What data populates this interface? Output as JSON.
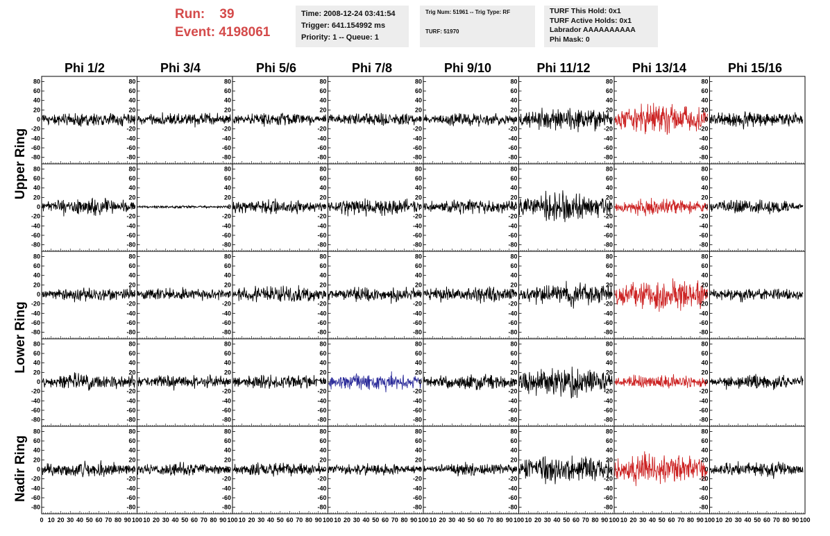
{
  "run": {
    "run_label": "Run:",
    "run_value": "39",
    "event_label": "Event:",
    "event_value": "4198061"
  },
  "time_box": {
    "time": "Time: 2008-12-24 03:41:54",
    "trigger": "Trigger: 641.154992 ms",
    "priority": "Priority: 1 -- Queue: 1"
  },
  "trig_box": {
    "trig": "Trig Num: 51961 -- Trig Type: RF",
    "turf": "TURF: 51970"
  },
  "turf_box": {
    "hold": "TURF This Hold: 0x1",
    "active": "TURF Active Holds: 0x1",
    "labrador": "Labrador AAAAAAAAAA",
    "phimask": "Phi Mask: 0"
  },
  "columns": [
    "Phi 1/2",
    "Phi 3/4",
    "Phi 5/6",
    "Phi 7/8",
    "Phi 9/10",
    "Phi 11/12",
    "Phi 13/14",
    "Phi 15/16"
  ],
  "rings": [
    "Upper Ring",
    "Lower Ring",
    "Nadir Ring"
  ],
  "colors": {
    "normal": "#000000",
    "triggered": "#cc2222",
    "highlight": "#2a2a99",
    "header_text": "#d44a4a"
  },
  "chart_data": {
    "type": "line",
    "panel_rows": 5,
    "panel_cols": 8,
    "ylim": [
      -85,
      85
    ],
    "yticks": [
      -80,
      -60,
      -40,
      -20,
      0,
      20,
      40,
      60,
      80
    ],
    "xlim": [
      0,
      100
    ],
    "xticks": [
      0,
      10,
      20,
      30,
      40,
      50,
      60,
      70,
      80,
      90,
      100
    ],
    "xtick_labels": [
      "0",
      "10",
      "20",
      "30",
      "40",
      "50",
      "60",
      "70",
      "80",
      "90",
      "100"
    ],
    "row_ring_groups": [
      [
        0,
        1
      ],
      [
        2,
        3
      ],
      [
        4,
        4
      ]
    ],
    "waveform_amplitude": [
      [
        18,
        18,
        18,
        18,
        16,
        30,
        40,
        22
      ],
      [
        22,
        4,
        20,
        22,
        20,
        38,
        20,
        18
      ],
      [
        20,
        18,
        22,
        20,
        20,
        32,
        45,
        18
      ],
      [
        22,
        18,
        20,
        24,
        22,
        40,
        18,
        20
      ],
      [
        20,
        18,
        18,
        16,
        16,
        38,
        42,
        20
      ]
    ],
    "waveform_color": [
      [
        "normal",
        "normal",
        "normal",
        "normal",
        "normal",
        "normal",
        "triggered",
        "normal"
      ],
      [
        "normal",
        "normal",
        "normal",
        "normal",
        "normal",
        "normal",
        "triggered",
        "normal"
      ],
      [
        "normal",
        "normal",
        "normal",
        "normal",
        "normal",
        "normal",
        "triggered",
        "normal"
      ],
      [
        "normal",
        "normal",
        "normal",
        "highlight",
        "normal",
        "normal",
        "triggered",
        "normal"
      ],
      [
        "normal",
        "normal",
        "normal",
        "normal",
        "normal",
        "normal",
        "triggered",
        "normal"
      ]
    ]
  }
}
